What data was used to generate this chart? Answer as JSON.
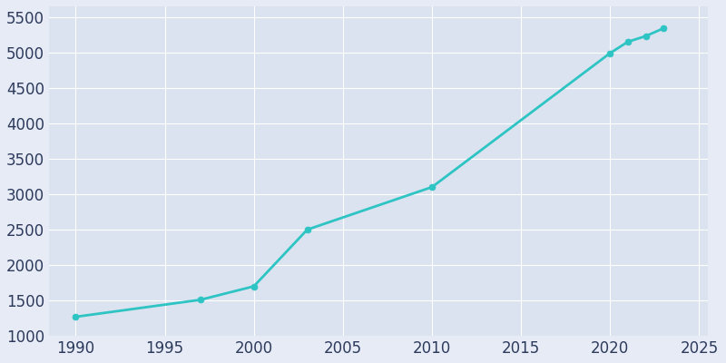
{
  "years": [
    1990,
    1997,
    2000,
    2003,
    2010,
    2020,
    2021,
    2022,
    2023
  ],
  "population": [
    1270,
    1510,
    1700,
    2500,
    3100,
    4990,
    5150,
    5230,
    5340
  ],
  "line_color": "#2EC4C4",
  "marker_color": "#2EC4C4",
  "bg_color": "#E6EBF5",
  "plot_bg_color": "#DAE3EF",
  "grid_color": "#FFFFFF",
  "text_color": "#2D3A5C",
  "xlim": [
    1988.5,
    2025.5
  ],
  "ylim": [
    1000,
    5650
  ],
  "xticks": [
    1990,
    1995,
    2000,
    2005,
    2010,
    2015,
    2020,
    2025
  ],
  "yticks": [
    1000,
    1500,
    2000,
    2500,
    3000,
    3500,
    4000,
    4500,
    5000,
    5500
  ],
  "linewidth": 2.0,
  "marker_size": 5,
  "marker_style": "o",
  "tick_labelsize": 12
}
